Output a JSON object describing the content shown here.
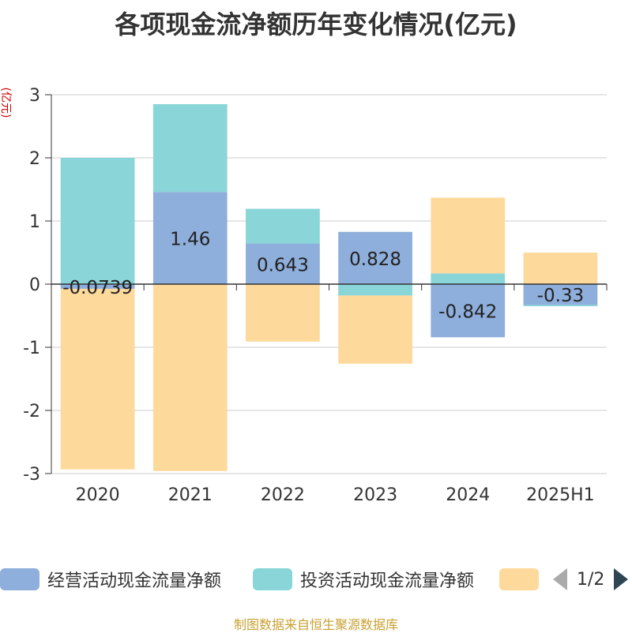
{
  "chart_data": {
    "type": "bar",
    "stacked": true,
    "title": "各项现金流净额历年变化情况(亿元)",
    "ylabel": "(亿元)",
    "categories": [
      "2020",
      "2021",
      "2022",
      "2023",
      "2024",
      "2025H1"
    ],
    "ylim": [
      -3,
      3
    ],
    "yticks": [
      3,
      2,
      1,
      0,
      -1,
      -2,
      -3
    ],
    "grid": true,
    "legend_position": "bottom",
    "series": [
      {
        "name": "经营活动现金流量净额",
        "color": "#8eaedb",
        "values": [
          -0.0739,
          1.46,
          0.643,
          0.828,
          -0.842,
          -0.33
        ],
        "labels": [
          "-0.0739",
          "1.46",
          "0.643",
          "0.828",
          "-0.842",
          "-0.33"
        ]
      },
      {
        "name": "投资活动现金流量净额",
        "color": "#89d5d8",
        "values": [
          2.0,
          1.39,
          0.55,
          -0.18,
          0.17,
          -0.02
        ]
      },
      {
        "name": "",
        "color": "#fdd99b",
        "values": [
          -2.86,
          -2.96,
          -0.91,
          -1.08,
          1.2,
          0.5
        ]
      }
    ]
  },
  "legend": {
    "page": "1/2"
  },
  "footer": {
    "source": "制图数据来自恒生聚源数据库"
  }
}
